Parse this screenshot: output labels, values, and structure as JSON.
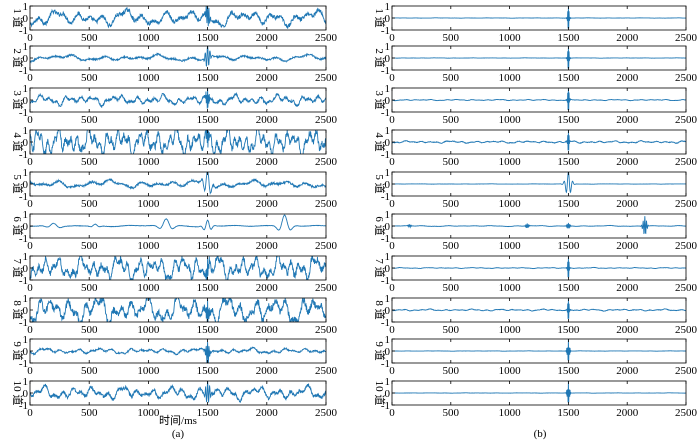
{
  "chart_data": [
    {
      "type": "line",
      "caption": "(a)",
      "xlabel": "时间/ms",
      "x_range": [
        0,
        2500
      ],
      "x_ticks": [
        0,
        500,
        1000,
        1500,
        2000,
        2500
      ],
      "y_ticks": [
        -1,
        0,
        1
      ],
      "ylim": [
        -1,
        1
      ],
      "series_color": "#1f77b4",
      "grid": false,
      "channels": [
        {
          "label": "1 道",
          "noise": 0.55,
          "freq": 3.2,
          "events": [
            {
              "t": 1500,
              "amp": 1.0,
              "width": 18,
              "freq": 3.0
            }
          ]
        },
        {
          "label": "2 道",
          "noise": 0.22,
          "freq": 2.4,
          "events": [
            {
              "t": 1500,
              "amp": 1.0,
              "width": 22,
              "freq": 2.2
            }
          ]
        },
        {
          "label": "3 道",
          "noise": 0.35,
          "freq": 5.0,
          "events": [
            {
              "t": 1500,
              "amp": 1.0,
              "width": 14,
              "freq": 4.0
            }
          ]
        },
        {
          "label": "4 道",
          "noise": 0.95,
          "freq": 7.0,
          "events": [
            {
              "t": 1500,
              "amp": 1.0,
              "width": 14,
              "freq": 4.0
            }
          ]
        },
        {
          "label": "5 道",
          "noise": 0.28,
          "freq": 2.5,
          "events": [
            {
              "t": 1500,
              "amp": 1.0,
              "width": 40,
              "freq": 1.5
            }
          ]
        },
        {
          "label": "6 道",
          "noise": 0.05,
          "freq": 1.5,
          "events": [
            {
              "t": 200,
              "amp": 0.25,
              "width": 60,
              "freq": 0.9
            },
            {
              "t": 550,
              "amp": 0.15,
              "width": 40,
              "freq": 0.9
            },
            {
              "t": 1150,
              "amp": 0.6,
              "width": 60,
              "freq": 0.9
            },
            {
              "t": 1500,
              "amp": 0.5,
              "width": 40,
              "freq": 1.2
            },
            {
              "t": 2150,
              "amp": 0.9,
              "width": 55,
              "freq": 0.9
            }
          ]
        },
        {
          "label": "7 道",
          "noise": 0.85,
          "freq": 6.0,
          "events": [
            {
              "t": 1500,
              "amp": 1.0,
              "width": 14,
              "freq": 4.0
            }
          ]
        },
        {
          "label": "8 道",
          "noise": 0.95,
          "freq": 4.5,
          "events": [
            {
              "t": 1500,
              "amp": 1.0,
              "width": 14,
              "freq": 4.0
            }
          ]
        },
        {
          "label": "9 道",
          "noise": 0.2,
          "freq": 4.0,
          "events": [
            {
              "t": 1500,
              "amp": 1.0,
              "width": 18,
              "freq": 3.0
            }
          ]
        },
        {
          "label": "10 道",
          "noise": 0.45,
          "freq": 4.5,
          "events": [
            {
              "t": 1500,
              "amp": 1.0,
              "width": 22,
              "freq": 2.5
            }
          ]
        }
      ]
    },
    {
      "type": "line",
      "caption": "(b)",
      "xlabel": "",
      "x_range": [
        0,
        2500
      ],
      "x_ticks": [
        0,
        500,
        1000,
        1500,
        2000,
        2500
      ],
      "y_ticks": [
        -1,
        0,
        1
      ],
      "ylim": [
        -1,
        1
      ],
      "series_color": "#1f77b4",
      "grid": false,
      "channels": [
        {
          "label": "1 道",
          "noise": 0.01,
          "freq": 4.0,
          "events": [
            {
              "t": 1500,
              "amp": 1.0,
              "width": 10,
              "freq": 4.0
            }
          ]
        },
        {
          "label": "2 道",
          "noise": 0.01,
          "freq": 4.0,
          "events": [
            {
              "t": 1500,
              "amp": 1.0,
              "width": 10,
              "freq": 4.0
            }
          ]
        },
        {
          "label": "3 道",
          "noise": 0.04,
          "freq": 5.0,
          "events": [
            {
              "t": 1500,
              "amp": 1.0,
              "width": 10,
              "freq": 4.0
            }
          ]
        },
        {
          "label": "4 道",
          "noise": 0.08,
          "freq": 5.0,
          "events": [
            {
              "t": 1500,
              "amp": 0.9,
              "width": 10,
              "freq": 4.0
            }
          ]
        },
        {
          "label": "5 道",
          "noise": 0.01,
          "freq": 3.0,
          "events": [
            {
              "t": 1500,
              "amp": 1.0,
              "width": 30,
              "freq": 1.6
            }
          ]
        },
        {
          "label": "6 道",
          "noise": 0.03,
          "freq": 3.0,
          "events": [
            {
              "t": 150,
              "amp": 0.12,
              "width": 15,
              "freq": 3.0
            },
            {
              "t": 1150,
              "amp": 0.2,
              "width": 15,
              "freq": 3.0
            },
            {
              "t": 1500,
              "amp": 0.25,
              "width": 15,
              "freq": 3.0
            },
            {
              "t": 2150,
              "amp": 0.85,
              "width": 18,
              "freq": 2.5
            }
          ]
        },
        {
          "label": "7 道",
          "noise": 0.03,
          "freq": 5.0,
          "events": [
            {
              "t": 1500,
              "amp": 0.9,
              "width": 10,
              "freq": 4.0
            }
          ]
        },
        {
          "label": "8 道",
          "noise": 0.06,
          "freq": 5.0,
          "events": [
            {
              "t": 1500,
              "amp": 0.9,
              "width": 10,
              "freq": 4.0
            }
          ]
        },
        {
          "label": "9 道",
          "noise": 0.01,
          "freq": 4.0,
          "events": [
            {
              "t": 1500,
              "amp": 1.0,
              "width": 12,
              "freq": 3.5
            }
          ]
        },
        {
          "label": "10 道",
          "noise": 0.01,
          "freq": 4.0,
          "events": [
            {
              "t": 1500,
              "amp": 1.0,
              "width": 12,
              "freq": 3.5
            }
          ]
        }
      ]
    }
  ]
}
